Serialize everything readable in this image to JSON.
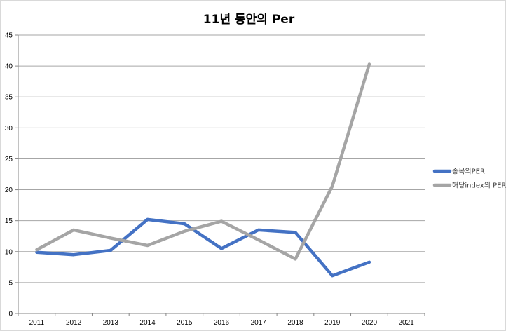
{
  "chart_data": {
    "type": "line",
    "title": "11년 동안의 Per",
    "xlabel": "",
    "ylabel": "",
    "categories": [
      "2011",
      "2012",
      "2013",
      "2014",
      "2015",
      "2016",
      "2017",
      "2018",
      "2019",
      "2020",
      "2021"
    ],
    "ylim": [
      0,
      45
    ],
    "yticks": [
      0,
      5,
      10,
      15,
      20,
      25,
      30,
      35,
      40,
      45
    ],
    "grid": true,
    "legend": "right",
    "series": [
      {
        "name": "종목의PER",
        "color": "#4472C4",
        "values": [
          9.9,
          9.5,
          10.2,
          15.2,
          14.5,
          10.5,
          13.5,
          13.1,
          6.1,
          8.3,
          null
        ]
      },
      {
        "name": "해당index의 PER",
        "color": "#A5A5A5",
        "values": [
          10.3,
          13.5,
          12.2,
          11.0,
          13.3,
          14.9,
          11.9,
          8.8,
          20.6,
          40.3,
          null
        ]
      }
    ]
  }
}
